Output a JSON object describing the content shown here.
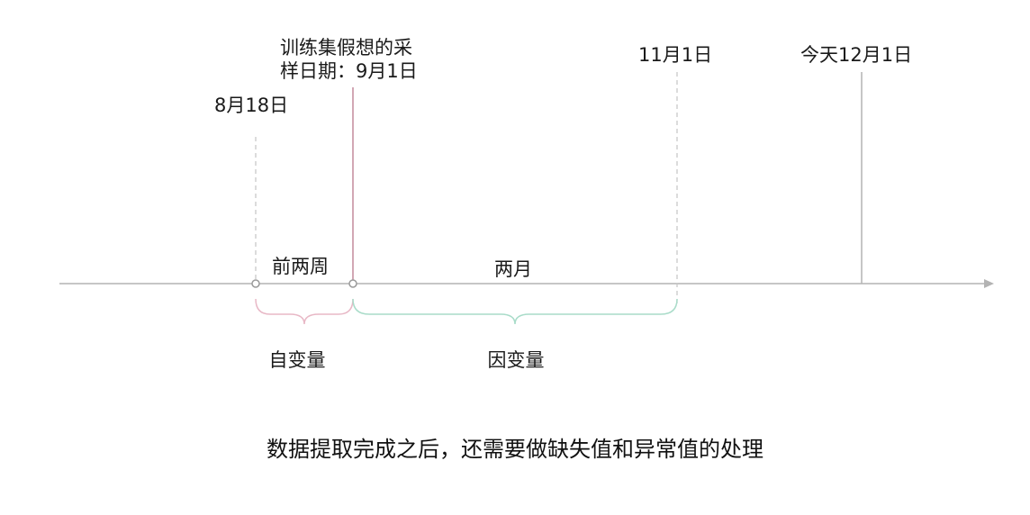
{
  "markers": {
    "aug18": "8月18日",
    "sample_line1": "训练集假想的采",
    "sample_line2": "样日期：9月1日",
    "nov1": "11月1日",
    "today": "今天12月1日"
  },
  "spans": {
    "two_weeks": "前两周",
    "two_months": "两月"
  },
  "braces": {
    "independent": "自变量",
    "dependent": "因变量"
  },
  "colors": {
    "axis": "#b3b3b3",
    "sample_line": "#c48a9b",
    "independent_brace": "#e8b8c6",
    "dependent_brace": "#a9dcc9"
  },
  "caption": "数据提取完成之后，还需要做缺失值和异常值的处理"
}
